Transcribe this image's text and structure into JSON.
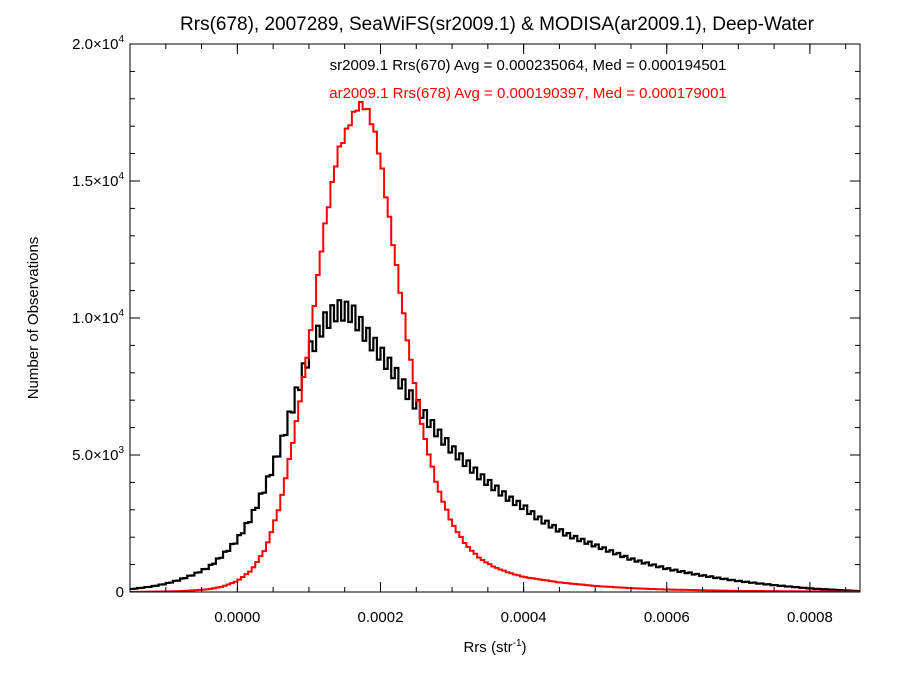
{
  "chart_data": {
    "type": "line",
    "title": "Rrs(678), 2007289, SeaWiFS(sr2009.1) & MODISA(ar2009.1), Deep-Water",
    "xlabel": "Rrs (str",
    "xlabel_sup": "-1",
    "xlabel_close": ")",
    "ylabel": "Number of Observations",
    "xlim": [
      -0.00015,
      0.00087
    ],
    "ylim": [
      0,
      20000
    ],
    "x_ticks": [
      {
        "value": 0.0,
        "label": "0.0000"
      },
      {
        "value": 0.0002,
        "label": "0.0002"
      },
      {
        "value": 0.0004,
        "label": "0.0004"
      },
      {
        "value": 0.0006,
        "label": "0.0006"
      },
      {
        "value": 0.0008,
        "label": "0.0008"
      }
    ],
    "y_ticks": [
      {
        "value": 0,
        "mant": "0",
        "exp": ""
      },
      {
        "value": 5000,
        "mant": "5.0×10",
        "exp": "3"
      },
      {
        "value": 10000,
        "mant": "1.0×10",
        "exp": "4"
      },
      {
        "value": 15000,
        "mant": "1.5×10",
        "exp": "4"
      },
      {
        "value": 20000,
        "mant": "2.0×10",
        "exp": "4"
      }
    ],
    "grid": false,
    "series": [
      {
        "name": "sr2009.1",
        "label": "sr2009.1 Rrs(670) Avg = 0.000235064, Med = 0.000194501",
        "color": "#000000",
        "x": [
          -0.00015,
          -0.00012,
          -0.0001,
          -8e-05,
          -6e-05,
          -4e-05,
          -2e-05,
          0.0,
          2e-05,
          4e-05,
          6e-05,
          8e-05,
          0.0001,
          0.00012,
          0.00014,
          0.00016,
          0.00018,
          0.0002,
          0.00022,
          0.00024,
          0.00026,
          0.00028,
          0.0003,
          0.00032,
          0.00034,
          0.00036,
          0.00038,
          0.0004,
          0.00042,
          0.00044,
          0.00046,
          0.00048,
          0.0005,
          0.00052,
          0.00055,
          0.0006,
          0.00065,
          0.0007,
          0.00075,
          0.0008,
          0.00087
        ],
        "y": [
          100,
          200,
          300,
          450,
          650,
          900,
          1350,
          1900,
          2750,
          3900,
          5300,
          7000,
          8700,
          9800,
          10300,
          10200,
          9400,
          8700,
          8000,
          7200,
          6500,
          5800,
          5200,
          4700,
          4200,
          3800,
          3400,
          3100,
          2700,
          2400,
          2100,
          1900,
          1700,
          1500,
          1200,
          850,
          600,
          400,
          250,
          130,
          30
        ]
      },
      {
        "name": "ar2009.1",
        "label": "ar2009.1 Rrs(678) Avg = 0.000190397, Med = 0.000179001",
        "color": "#ff0000",
        "x": [
          -0.00015,
          -8e-05,
          -4e-05,
          -2e-05,
          0.0,
          2e-05,
          4e-05,
          6e-05,
          8e-05,
          0.0001,
          0.00012,
          0.00014,
          0.00016,
          0.00017,
          0.00018,
          0.00019,
          0.0002,
          0.00022,
          0.00024,
          0.00026,
          0.00028,
          0.0003,
          0.00032,
          0.00034,
          0.00036,
          0.00038,
          0.0004,
          0.00045,
          0.0005,
          0.00055,
          0.0006,
          0.0007,
          0.00087
        ],
        "y": [
          0,
          30,
          100,
          200,
          400,
          800,
          1600,
          3200,
          5800,
          9000,
          13000,
          16000,
          17300,
          17800,
          17700,
          17000,
          15800,
          12300,
          8800,
          5800,
          3800,
          2500,
          1700,
          1200,
          900,
          700,
          550,
          350,
          220,
          140,
          90,
          40,
          10
        ]
      }
    ]
  }
}
